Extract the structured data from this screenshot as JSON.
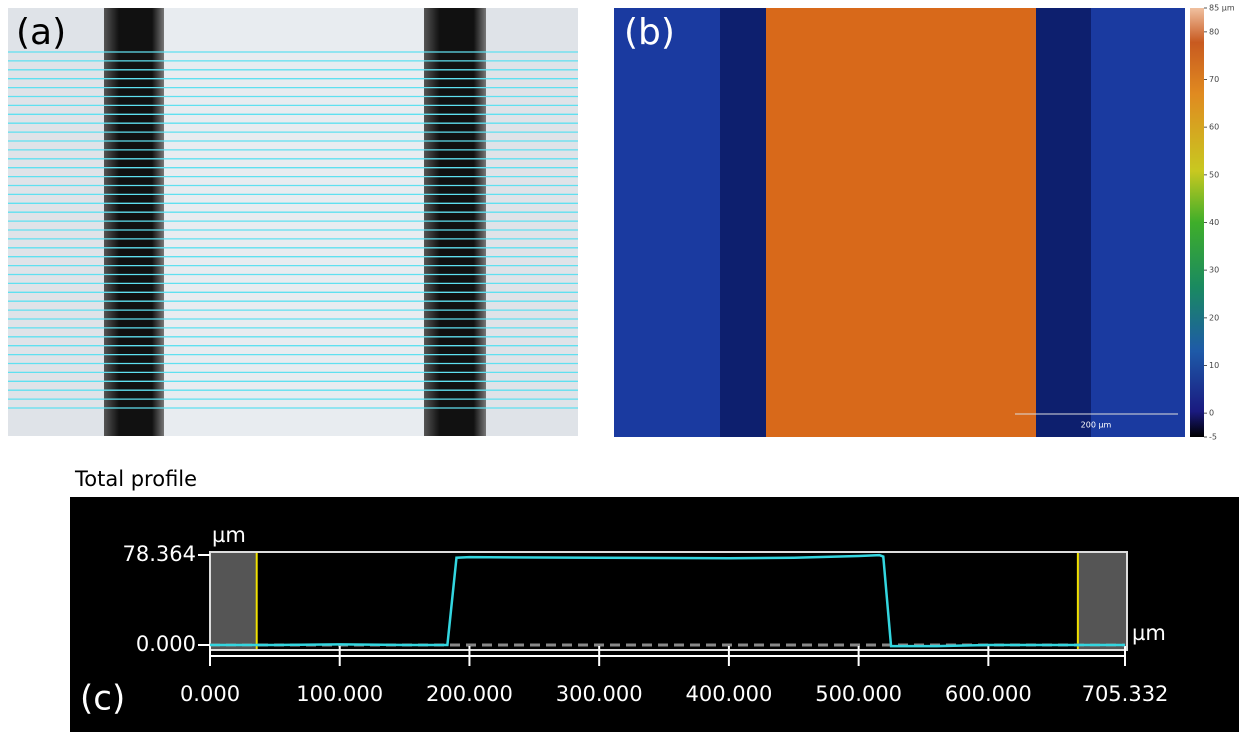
{
  "panel_a": {
    "label": "(a)"
  },
  "panel_b": {
    "label": "(b)",
    "scale_bar": "200 µm",
    "colorbar": {
      "lim": [
        -5,
        85
      ],
      "ticks": [
        {
          "value": 85,
          "label": "85 µm"
        },
        80,
        70,
        60,
        50,
        40,
        30,
        20,
        10,
        0,
        -5
      ]
    }
  },
  "chart_data": {
    "type": "line",
    "title": "Total profile",
    "panel_label": "(c)",
    "y_unit": "µm",
    "x_unit": "µm",
    "x": [
      0,
      50,
      100,
      150,
      183,
      190,
      200,
      300,
      400,
      450,
      500,
      516,
      519,
      525,
      560,
      600,
      650,
      705.332
    ],
    "series": [
      {
        "name": "profile",
        "color": "#33d6e0",
        "values": [
          0,
          0,
          0.5,
          0,
          0,
          76,
          76.5,
          76,
          75.5,
          76,
          77.5,
          78.3,
          77,
          -1,
          -1,
          0,
          0,
          0
        ]
      }
    ],
    "cursors": [
      36,
      669
    ],
    "xlim": [
      0,
      705.332
    ],
    "ylim": [
      -4.35,
      80.98
    ],
    "xticks": [
      {
        "value": 0,
        "label": "0.000"
      },
      {
        "value": 100,
        "label": "100.000"
      },
      {
        "value": 200,
        "label": "200.000"
      },
      {
        "value": 300,
        "label": "300.000"
      },
      {
        "value": 400,
        "label": "400.000"
      },
      {
        "value": 500,
        "label": "500.000"
      },
      {
        "value": 600,
        "label": "600.000"
      },
      705.332
    ],
    "yticks": [
      {
        "value": 0,
        "label": "0.000"
      },
      78.364
    ]
  }
}
